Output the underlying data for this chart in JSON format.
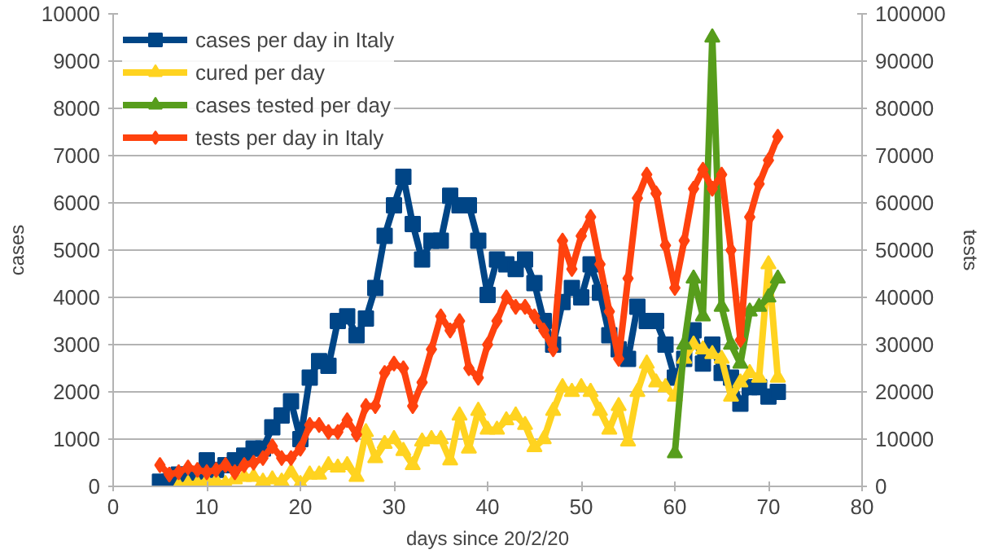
{
  "chart_data": {
    "type": "line",
    "xlabel": "days since 20/2/20",
    "ylabel": "cases",
    "y2label": "tests",
    "xlim": [
      0,
      80
    ],
    "xticks": [
      0,
      10,
      20,
      30,
      40,
      50,
      60,
      70,
      80
    ],
    "ylim": [
      0,
      10000
    ],
    "yticks": [
      0,
      1000,
      2000,
      3000,
      4000,
      5000,
      6000,
      7000,
      8000,
      9000,
      10000
    ],
    "y2lim": [
      0,
      100000
    ],
    "y2ticks": [
      0,
      10000,
      20000,
      30000,
      40000,
      50000,
      60000,
      70000,
      80000,
      90000,
      100000
    ],
    "grid": "y",
    "legend": "top left",
    "line_style": "solid",
    "series": [
      {
        "name": "cases per day in Italy",
        "color": "#004586",
        "marker": "square",
        "x": [
          5,
          6,
          7,
          8,
          9,
          10,
          11,
          12,
          13,
          14,
          15,
          16,
          17,
          18,
          19,
          20,
          21,
          22,
          23,
          24,
          25,
          26,
          27,
          28,
          29,
          30,
          31,
          32,
          33,
          34,
          35,
          36,
          37,
          38,
          39,
          40,
          41,
          42,
          43,
          44,
          45,
          46,
          47,
          48,
          49,
          50,
          51,
          52,
          53,
          54,
          55,
          56,
          57,
          58,
          59,
          60,
          61,
          62,
          63,
          64,
          65,
          66,
          67,
          68,
          69,
          70,
          71
        ],
        "values": [
          100,
          100,
          250,
          250,
          250,
          550,
          350,
          450,
          550,
          650,
          800,
          800,
          1250,
          1500,
          1800,
          1000,
          2300,
          2650,
          2550,
          3500,
          3600,
          3200,
          3550,
          4200,
          5300,
          5950,
          6550,
          5550,
          4800,
          5200,
          5200,
          6150,
          5950,
          5950,
          5200,
          4050,
          4800,
          4700,
          4600,
          4800,
          4300,
          3500,
          3000,
          3900,
          4200,
          4000,
          4700,
          4100,
          3200,
          2900,
          2700,
          3800,
          3500,
          3500,
          3000,
          2300,
          2700,
          3300,
          2600,
          3000,
          2400,
          2300,
          1750,
          2100,
          2100,
          1900,
          2000
        ]
      },
      {
        "name": "cured per day",
        "color": "#ffd320",
        "marker": "triangle",
        "x": [
          7,
          8,
          9,
          10,
          11,
          12,
          13,
          14,
          15,
          16,
          17,
          18,
          19,
          20,
          21,
          22,
          23,
          24,
          25,
          26,
          27,
          28,
          29,
          30,
          31,
          32,
          33,
          34,
          35,
          36,
          37,
          38,
          39,
          40,
          41,
          42,
          43,
          44,
          45,
          46,
          47,
          48,
          49,
          50,
          51,
          52,
          53,
          54,
          55,
          56,
          57,
          58,
          59,
          60,
          61,
          62,
          63,
          64,
          65,
          66,
          67,
          68,
          69,
          70,
          71
        ],
        "values": [
          0,
          50,
          50,
          100,
          100,
          50,
          150,
          200,
          200,
          100,
          150,
          100,
          300,
          50,
          250,
          250,
          450,
          400,
          450,
          200,
          1150,
          600,
          900,
          1000,
          750,
          450,
          950,
          1000,
          1000,
          550,
          1500,
          800,
          1600,
          1200,
          1200,
          1400,
          1500,
          1300,
          830,
          1000,
          1600,
          2100,
          2000,
          2100,
          2000,
          1600,
          1200,
          1700,
          950,
          2000,
          2600,
          2200,
          2100,
          1900,
          2700,
          3000,
          2900,
          2800,
          2700,
          1900,
          2200,
          2400,
          2300,
          4700,
          2300
        ]
      },
      {
        "name": "cases tested per day",
        "color": "#579d1c",
        "marker": "triangle",
        "axis": "y2",
        "x": [
          60,
          61,
          62,
          63,
          64,
          65,
          66,
          67,
          68,
          69,
          70,
          71
        ],
        "values": [
          7000,
          30000,
          44000,
          36000,
          95000,
          38000,
          30000,
          26000,
          37000,
          38000,
          40000,
          44000
        ]
      },
      {
        "name": "tests per day in Italy",
        "color": "#ff420e",
        "marker": "diamond",
        "axis": "y2",
        "x": [
          5,
          6,
          7,
          8,
          9,
          10,
          11,
          12,
          13,
          14,
          15,
          16,
          17,
          18,
          19,
          20,
          21,
          22,
          23,
          24,
          25,
          26,
          27,
          28,
          29,
          30,
          31,
          32,
          33,
          34,
          35,
          36,
          37,
          38,
          39,
          40,
          41,
          42,
          43,
          44,
          45,
          46,
          47,
          48,
          49,
          50,
          51,
          52,
          53,
          54,
          55,
          56,
          57,
          58,
          59,
          60,
          61,
          62,
          63,
          64,
          65,
          66,
          67,
          68,
          69,
          70,
          71
        ],
        "values": [
          4500,
          2500,
          3000,
          4000,
          3500,
          3000,
          3500,
          4500,
          3000,
          4500,
          5000,
          6000,
          8500,
          6000,
          6000,
          8000,
          13000,
          13000,
          11500,
          11500,
          14000,
          11000,
          17000,
          17000,
          24000,
          26000,
          25000,
          17000,
          22000,
          29000,
          36000,
          33000,
          35000,
          25000,
          23000,
          30000,
          35000,
          40000,
          38000,
          38000,
          36000,
          33000,
          29000,
          52000,
          46000,
          53000,
          57000,
          47000,
          37000,
          27000,
          44000,
          61000,
          66000,
          62000,
          51000,
          42000,
          52000,
          63000,
          67000,
          63000,
          66000,
          50000,
          31000,
          57000,
          64000,
          69000,
          74000
        ]
      }
    ]
  }
}
